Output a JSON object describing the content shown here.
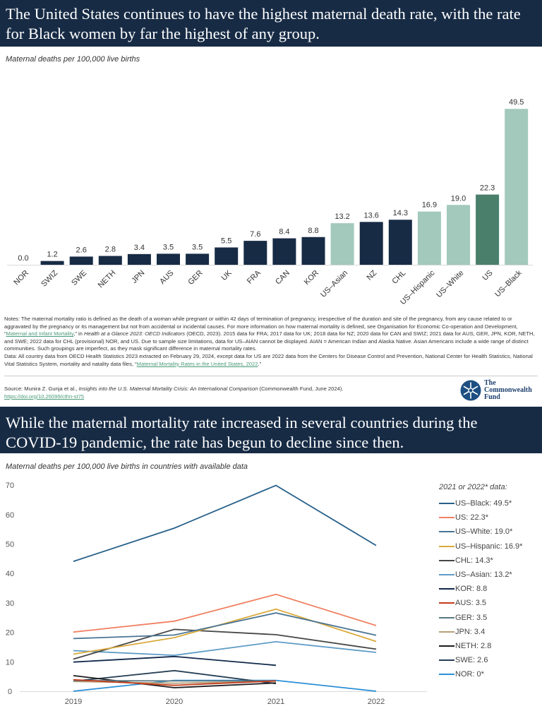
{
  "panel1": {
    "title": "The United States continues to have the highest maternal death rate, with the rate for Black women by far the highest of any group.",
    "subtitle": "Maternal deaths per 100,000 live births",
    "notes_prefix": "Notes: The maternal mortality ratio is defined as the death of a woman while pregnant or within 42 days of termination of pregnancy, irrespective of the duration and site of the pregnancy, from any cause related to or aggravated by the pregnancy or its management but not from accidental or incidental causes. For more information on how maternal mortality is defined, see Organisation for Economic Co-operation and Development, “",
    "notes_link": "Maternal and Infant Mortality",
    "notes_mid": ",” in ",
    "notes_italic": "Health at a Glance 2023: OECD Indicators",
    "notes_suffix": " (OECD, 2023). 2015 data for FRA; 2017 data for UK; 2018 data for NZ; 2020 data for CAN and SWIZ; 2021 data for AUS, GER, JPN, KOR, NETH, and SWE; 2022 data for CHL (provisional) NOR, and US. Due to sample size limitations, data for US–AIAN cannot be displayed. AIAN = American Indian and Alaska Native. Asian Americans include a wide range of distinct communities. Such groupings are imperfect, as they mask significant difference in maternal mortality rates.",
    "data_prefix": "Data: All country data from OECD Health Statistics 2023 extracted on February 29, 2024, except data for US are 2022 data from the Centers for Disease Control and Prevention, National Center for Health Statistics, National Vital Statistics System, mortality and natality data files, “",
    "data_link": "Maternal Mortality Rates in the United States, 2022",
    "data_suffix": ".”",
    "source_prefix": "Source: Munira Z. Gunja et al., ",
    "source_italic": "Insights into the U.S. Maternal Mortality Crisis: An International Comparison",
    "source_suffix": " (Commonwealth Fund, June 2024).",
    "source_link": "https://doi.org/10.26099/cthn-st75",
    "logo": "The Commonwealth Fund"
  },
  "panel2": {
    "title": "While the maternal mortality rate increased in several countries during the COVID-19 pandemic, the rate has begun to decline since then.",
    "subtitle": "Maternal deaths per 100,000 live births in countries with available data",
    "legend_title": "2021 or 2022* data:"
  },
  "colors": {
    "navy": "#172b45",
    "teal_light": "#a2c9bb",
    "us_green": "#4a7f6c"
  },
  "chart_data": [
    {
      "type": "bar",
      "categories": [
        "NOR",
        "SWIZ",
        "SWE",
        "NETH",
        "JPN",
        "AUS",
        "GER",
        "UK",
        "FRA",
        "CAN",
        "KOR",
        "US–Asian",
        "NZ",
        "CHL",
        "US–Hispanic",
        "US–White",
        "US",
        "US–Black"
      ],
      "values": [
        0.0,
        1.2,
        2.6,
        2.8,
        3.4,
        3.5,
        3.5,
        5.5,
        7.6,
        8.4,
        8.8,
        13.2,
        13.6,
        14.3,
        16.9,
        19.0,
        22.3,
        49.5
      ],
      "labels": [
        "0.0",
        "1.2",
        "2.6",
        "2.8",
        "3.4",
        "3.5",
        "3.5",
        "5.5",
        "7.6",
        "8.4",
        "8.8",
        "13.2",
        "13.6",
        "14.3",
        "16.9",
        "19.0",
        "22.3",
        "49.5"
      ],
      "bar_colors": [
        "#172b45",
        "#172b45",
        "#172b45",
        "#172b45",
        "#172b45",
        "#172b45",
        "#172b45",
        "#172b45",
        "#172b45",
        "#172b45",
        "#172b45",
        "#a2c9bb",
        "#172b45",
        "#172b45",
        "#a2c9bb",
        "#a2c9bb",
        "#4a7f6c",
        "#a2c9bb"
      ],
      "ylabel": "Maternal deaths per 100,000 live births",
      "ylim": [
        0,
        50
      ],
      "grid": false
    },
    {
      "type": "line",
      "x": [
        "2019",
        "2020",
        "2021",
        "2022"
      ],
      "ylim": [
        0,
        70
      ],
      "yticks": [
        "0",
        "10",
        "20",
        "30",
        "40",
        "50",
        "60",
        "70"
      ],
      "grid": false,
      "legend": "right",
      "series": [
        {
          "name": "US–Black: 49.5*",
          "color": "#27608a",
          "values": [
            44.1,
            55.4,
            69.9,
            49.5
          ]
        },
        {
          "name": "US: 22.3*",
          "color": "#f08062",
          "values": [
            20.1,
            23.8,
            32.9,
            22.3
          ]
        },
        {
          "name": "US–White: 19.0*",
          "color": "#4a7594",
          "values": [
            17.9,
            19.1,
            26.6,
            19.0
          ]
        },
        {
          "name": "US–Hispanic: 16.9*",
          "color": "#dba93c",
          "values": [
            12.6,
            18.2,
            27.9,
            16.9
          ]
        },
        {
          "name": "CHL: 14.3*",
          "color": "#474747",
          "values": [
            10.9,
            21.0,
            19.2,
            14.3
          ]
        },
        {
          "name": "US–Asian: 13.2*",
          "color": "#5f9cc6",
          "values": [
            13.8,
            12.2,
            16.8,
            13.2
          ]
        },
        {
          "name": "KOR: 8.8",
          "color": "#10294a",
          "values": [
            9.9,
            11.8,
            8.8,
            null
          ]
        },
        {
          "name": "AUS: 3.5",
          "color": "#c43c1e",
          "values": [
            3.9,
            2.0,
            3.5,
            null
          ]
        },
        {
          "name": "GER: 3.5",
          "color": "#5a7883",
          "values": [
            3.6,
            3.5,
            3.5,
            null
          ]
        },
        {
          "name": "JPN: 3.4",
          "color": "#b79f76",
          "values": [
            3.3,
            2.7,
            3.4,
            null
          ]
        },
        {
          "name": "NETH: 2.8",
          "color": "#1c1c1c",
          "values": [
            5.3,
            1.2,
            2.8,
            null
          ]
        },
        {
          "name": "SWE: 2.6",
          "color": "#263f55",
          "values": [
            3.4,
            7.0,
            2.6,
            null
          ]
        },
        {
          "name": "NOR: 0*",
          "color": "#2a8fd6",
          "values": [
            0,
            3.7,
            3.7,
            0
          ]
        }
      ]
    }
  ]
}
